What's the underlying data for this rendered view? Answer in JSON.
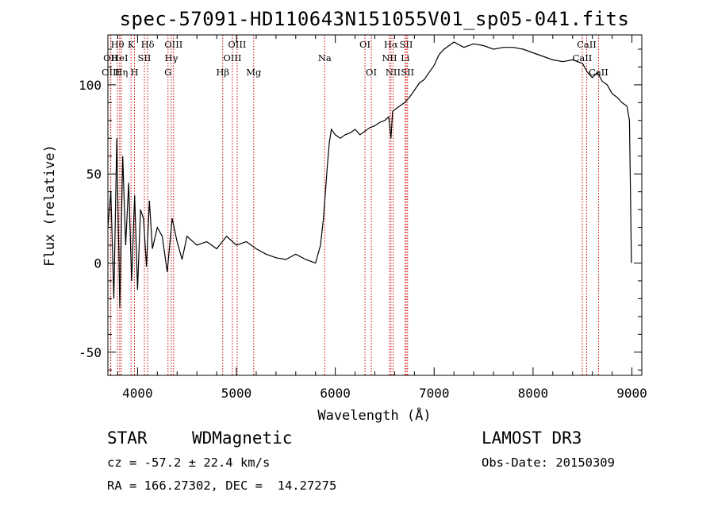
{
  "title": "spec-57091-HD110643N151055V01_sp05-041.fits",
  "info": {
    "class_label": "STAR",
    "subclass_label": "WDMagnetic",
    "survey": "LAMOST DR3",
    "cz": "cz = -57.2 ± 22.4 km/s",
    "obs_date": "Obs-Date: 20150309",
    "coords": "RA = 166.27302, DEC =  14.27275"
  },
  "chart_data": {
    "type": "line",
    "title": "spec-57091-HD110643N151055V01_sp05-041.fits",
    "xlabel": "Wavelength (Å)",
    "ylabel": "Flux (relative)",
    "xlim": [
      3700,
      9100
    ],
    "ylim": [
      -63,
      128
    ],
    "xticks": [
      4000,
      5000,
      6000,
      7000,
      8000,
      9000
    ],
    "yticks": [
      -50,
      0,
      50,
      100
    ],
    "grid": false,
    "legend": "none",
    "line_color": "#000000",
    "marker_color": "#cc0000",
    "series": [
      {
        "x": [
          3700,
          3730,
          3760,
          3790,
          3820,
          3850,
          3880,
          3910,
          3940,
          3970,
          4000,
          4030,
          4060,
          4090,
          4120,
          4150,
          4200,
          4250,
          4300,
          4350,
          4400,
          4450,
          4500,
          4600,
          4700,
          4800,
          4900,
          5000,
          5100,
          5200,
          5300,
          5400,
          5500,
          5600,
          5700,
          5800,
          5850,
          5880,
          5900,
          5920,
          5940,
          5960,
          6000,
          6050,
          6100,
          6150,
          6200,
          6250,
          6300,
          6350,
          6400,
          6450,
          6500,
          6540,
          6563,
          6580,
          6600,
          6650,
          6700,
          6750,
          6800,
          6850,
          6900,
          6950,
          7000,
          7050,
          7100,
          7150,
          7200,
          7300,
          7400,
          7500,
          7600,
          7700,
          7800,
          7900,
          8000,
          8100,
          8200,
          8300,
          8400,
          8500,
          8550,
          8600,
          8650,
          8700,
          8750,
          8800,
          8850,
          8900,
          8950,
          8975,
          8985,
          8995
        ],
        "y": [
          20,
          40,
          -20,
          70,
          -25,
          60,
          10,
          45,
          -10,
          38,
          -15,
          30,
          25,
          -2,
          35,
          8,
          20,
          15,
          -5,
          25,
          12,
          2,
          15,
          10,
          12,
          8,
          15,
          10,
          12,
          8,
          5,
          3,
          2,
          5,
          2,
          0,
          10,
          25,
          40,
          55,
          68,
          75,
          72,
          70,
          72,
          73,
          75,
          72,
          74,
          76,
          77,
          79,
          80,
          82,
          70,
          85,
          86,
          88,
          90,
          93,
          97,
          101,
          103,
          107,
          111,
          117,
          120,
          122,
          124,
          121,
          123,
          122,
          120,
          121,
          121,
          120,
          118,
          116,
          114,
          113,
          114,
          112,
          107,
          104,
          107,
          102,
          100,
          95,
          93,
          90,
          88,
          80,
          40,
          0
        ]
      }
    ],
    "line_markers": [
      {
        "label": "Hθ",
        "wl": 3797,
        "row": 0
      },
      {
        "label": "OII",
        "wl": 3727,
        "row": 1
      },
      {
        "label": "OIII",
        "wl": 3729,
        "row": 2
      },
      {
        "label": "HeI",
        "wl": 3819,
        "row": 1
      },
      {
        "label": "Hη",
        "wl": 3835,
        "row": 2
      },
      {
        "label": "K",
        "wl": 3934,
        "row": 0
      },
      {
        "label": "H",
        "wl": 3969,
        "row": 2
      },
      {
        "label": "SII",
        "wl": 4069,
        "row": 1
      },
      {
        "label": "Hδ",
        "wl": 4102,
        "row": 0
      },
      {
        "label": "OIII",
        "wl": 4364,
        "row": 0
      },
      {
        "label": "Hγ",
        "wl": 4341,
        "row": 1
      },
      {
        "label": "G",
        "wl": 4308,
        "row": 2
      },
      {
        "label": "Hβ",
        "wl": 4861,
        "row": 2
      },
      {
        "label": "OIII",
        "wl": 4959,
        "row": 1
      },
      {
        "label": "OIII",
        "wl": 5007,
        "row": 0
      },
      {
        "label": "Mg",
        "wl": 5175,
        "row": 2
      },
      {
        "label": "Na",
        "wl": 5893,
        "row": 1
      },
      {
        "label": "OI",
        "wl": 6300,
        "row": 0
      },
      {
        "label": "OI",
        "wl": 6364,
        "row": 2
      },
      {
        "label": "Hα",
        "wl": 6563,
        "row": 0
      },
      {
        "label": "NII",
        "wl": 6548,
        "row": 1
      },
      {
        "label": "NII",
        "wl": 6584,
        "row": 2
      },
      {
        "label": "SII",
        "wl": 6717,
        "row": 0
      },
      {
        "label": "Li",
        "wl": 6707,
        "row": 1
      },
      {
        "label": "SII",
        "wl": 6731,
        "row": 2
      },
      {
        "label": "CaII",
        "wl": 8542,
        "row": 0
      },
      {
        "label": "CaII",
        "wl": 8498,
        "row": 1
      },
      {
        "label": "CaII",
        "wl": 8662,
        "row": 2
      }
    ]
  }
}
